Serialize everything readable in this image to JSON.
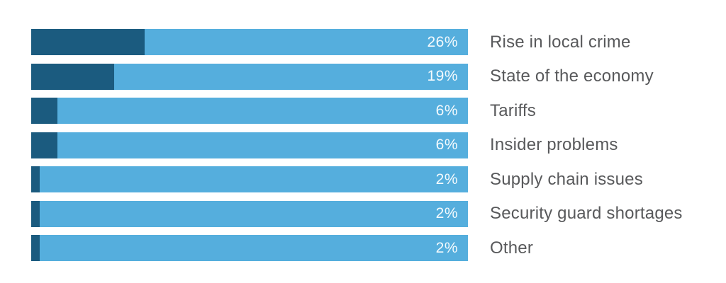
{
  "chart_data": {
    "type": "bar",
    "orientation": "horizontal",
    "title": "",
    "xlabel": "",
    "ylabel": "",
    "xlim": [
      0,
      100
    ],
    "grid": false,
    "legend": false,
    "categories": [
      "Rise in local crime",
      "State of the economy",
      "Tariffs",
      "Insider problems",
      "Supply chain issues",
      "Security guard shortages",
      "Other"
    ],
    "values": [
      26,
      19,
      6,
      6,
      2,
      2,
      2
    ],
    "value_labels": [
      "26%",
      "19%",
      "6%",
      "6%",
      "2%",
      "2%",
      "2%"
    ],
    "colors": {
      "fill": "#1B5B7F",
      "track": "#55AEDD",
      "value_text": "#F4FAFD",
      "label_text": "#58595B"
    }
  }
}
